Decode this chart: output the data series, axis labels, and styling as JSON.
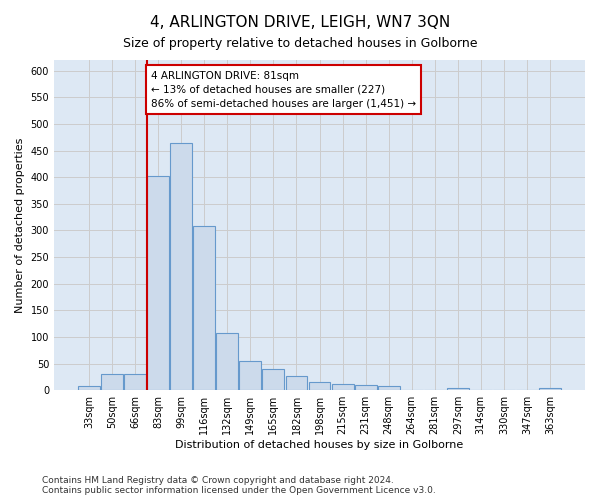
{
  "title": "4, ARLINGTON DRIVE, LEIGH, WN7 3QN",
  "subtitle": "Size of property relative to detached houses in Golborne",
  "xlabel": "Distribution of detached houses by size in Golborne",
  "ylabel": "Number of detached properties",
  "footer_line1": "Contains HM Land Registry data © Crown copyright and database right 2024.",
  "footer_line2": "Contains public sector information licensed under the Open Government Licence v3.0.",
  "categories": [
    "33sqm",
    "50sqm",
    "66sqm",
    "83sqm",
    "99sqm",
    "116sqm",
    "132sqm",
    "149sqm",
    "165sqm",
    "182sqm",
    "198sqm",
    "215sqm",
    "231sqm",
    "248sqm",
    "264sqm",
    "281sqm",
    "297sqm",
    "314sqm",
    "330sqm",
    "347sqm",
    "363sqm"
  ],
  "values": [
    7,
    30,
    30,
    403,
    464,
    308,
    108,
    54,
    40,
    27,
    15,
    12,
    10,
    7,
    0,
    0,
    5,
    0,
    0,
    0,
    5
  ],
  "bar_color": "#ccdaeb",
  "bar_edge_color": "#6699cc",
  "vline_color": "#cc0000",
  "annotation_text": "4 ARLINGTON DRIVE: 81sqm\n← 13% of detached houses are smaller (227)\n86% of semi-detached houses are larger (1,451) →",
  "annotation_box_color": "#cc0000",
  "ylim": [
    0,
    620
  ],
  "yticks": [
    0,
    50,
    100,
    150,
    200,
    250,
    300,
    350,
    400,
    450,
    500,
    550,
    600
  ],
  "grid_color": "#cccccc",
  "bg_color": "#dde8f4",
  "title_fontsize": 11,
  "subtitle_fontsize": 9,
  "axis_label_fontsize": 8,
  "tick_fontsize": 7,
  "annotation_fontsize": 7.5,
  "footer_fontsize": 6.5
}
